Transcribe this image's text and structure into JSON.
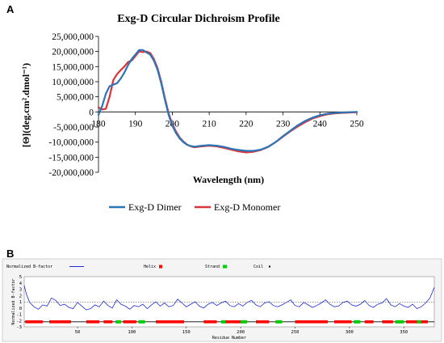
{
  "panels": {
    "a_letter": "A",
    "b_letter": "B"
  },
  "chart_data": [
    {
      "type": "line",
      "title": "Exg-D Circular Dichroism Profile",
      "xlabel": "Wavelength (nm)",
      "ylabel": "[Θ](deg.cm².dmol⁻¹)",
      "xlim": [
        180,
        250
      ],
      "ylim": [
        -20000000,
        25000000
      ],
      "x_ticks": [
        180,
        190,
        200,
        210,
        220,
        230,
        240,
        250
      ],
      "y_ticks": [
        25000000,
        20000000,
        15000000,
        10000000,
        5000000,
        0,
        -5000000,
        -10000000,
        -15000000,
        -20000000
      ],
      "x_tick_labels": [
        "180",
        "190",
        "200",
        "210",
        "220",
        "230",
        "240",
        "250"
      ],
      "y_tick_labels": [
        "25,000,000",
        "20,000,000",
        "15,000,000",
        "10,000,000",
        "5,000,000",
        "0",
        "-5,000,000",
        "-10,000,000",
        "-15,000,000",
        "-20,000,000"
      ],
      "grid": false,
      "legend_position": "bottom",
      "series": [
        {
          "name": "Exg-D Dimer",
          "color": "#2e75b6",
          "x": [
            180,
            181,
            182,
            183,
            184,
            185,
            186,
            187,
            188,
            189,
            190,
            191,
            192,
            193,
            194,
            195,
            196,
            197,
            198,
            199,
            200,
            201,
            202,
            203,
            204,
            205,
            206,
            208,
            210,
            212,
            214,
            216,
            218,
            220,
            222,
            224,
            226,
            228,
            230,
            232,
            234,
            236,
            238,
            240,
            242,
            244,
            246,
            248,
            250
          ],
          "y": [
            -1000000,
            2000000,
            6000000,
            8500000,
            9000000,
            9500000,
            11000000,
            13000000,
            15500000,
            17500000,
            19000000,
            20500000,
            20500000,
            19700000,
            19000000,
            17000000,
            14000000,
            9500000,
            4000000,
            -1000000,
            -4500000,
            -7000000,
            -8800000,
            -10000000,
            -10900000,
            -11300000,
            -11500000,
            -11200000,
            -11000000,
            -11200000,
            -11600000,
            -12200000,
            -12600000,
            -12900000,
            -12900000,
            -12500000,
            -11500000,
            -10000000,
            -8000000,
            -6200000,
            -4400000,
            -3000000,
            -1900000,
            -1100000,
            -600000,
            -300000,
            -200000,
            -100000,
            0
          ]
        },
        {
          "name": "Exg-D Monomer",
          "color": "#d9343a",
          "x": [
            180,
            181,
            182,
            183,
            184,
            185,
            186,
            187,
            188,
            189,
            190,
            191,
            192,
            193,
            194,
            195,
            196,
            197,
            198,
            199,
            200,
            201,
            202,
            203,
            204,
            205,
            206,
            208,
            210,
            212,
            214,
            216,
            218,
            220,
            222,
            224,
            226,
            228,
            230,
            232,
            234,
            236,
            238,
            240,
            242,
            244,
            246,
            248,
            250
          ],
          "y": [
            1500000,
            800000,
            1000000,
            5000000,
            10500000,
            12500000,
            13800000,
            15000000,
            16500000,
            17000000,
            18500000,
            20000000,
            19800000,
            20000000,
            19500000,
            17500000,
            14500000,
            10000000,
            4500000,
            -500000,
            -4000000,
            -6500000,
            -8500000,
            -9800000,
            -10800000,
            -11400000,
            -11700000,
            -11400000,
            -11200000,
            -11400000,
            -11900000,
            -12500000,
            -13100000,
            -13400000,
            -13200000,
            -12600000,
            -11600000,
            -10000000,
            -8200000,
            -6400000,
            -4800000,
            -3400000,
            -2200000,
            -1400000,
            -800000,
            -500000,
            -300000,
            -200000,
            -100000
          ]
        }
      ]
    },
    {
      "type": "line",
      "xlabel": "Residue Number",
      "ylabel": "Normalized B-factor",
      "xlim": [
        1,
        378
      ],
      "ylim": [
        -3,
        5
      ],
      "x_ticks": [
        50,
        100,
        150,
        200,
        250,
        300,
        350
      ],
      "x_tick_labels": [
        "50",
        "100",
        "150",
        "200",
        "250",
        "300",
        "350"
      ],
      "y_ticks": [
        5,
        4,
        3,
        2,
        1,
        0,
        -1,
        -2,
        -3
      ],
      "y_tick_labels": [
        "5",
        "4",
        "3",
        "2",
        "1",
        "0",
        "-1",
        "-2",
        "-3"
      ],
      "legend_position": "top",
      "legend": [
        "Normalized B-factor",
        "Helix",
        "Strand",
        "Coil"
      ],
      "mean_line": 0.9,
      "colors": {
        "bfactor": "#1f2bd6",
        "helix": "#ff0000",
        "strand": "#00cc00",
        "coil": "#000000",
        "mean": "#000000"
      },
      "series": [
        {
          "name": "Normalized B-factor",
          "x": [
            1,
            3,
            6,
            10,
            14,
            18,
            22,
            26,
            30,
            34,
            38,
            42,
            46,
            50,
            54,
            58,
            62,
            66,
            70,
            74,
            78,
            82,
            86,
            90,
            94,
            98,
            102,
            106,
            110,
            114,
            118,
            122,
            126,
            130,
            134,
            138,
            142,
            146,
            150,
            154,
            158,
            162,
            166,
            170,
            174,
            178,
            182,
            186,
            190,
            194,
            198,
            202,
            206,
            210,
            214,
            218,
            222,
            226,
            230,
            234,
            238,
            242,
            246,
            250,
            254,
            258,
            262,
            266,
            270,
            274,
            278,
            282,
            286,
            290,
            294,
            298,
            302,
            306,
            310,
            314,
            318,
            322,
            326,
            330,
            334,
            338,
            342,
            346,
            350,
            354,
            358,
            362,
            366,
            370,
            374,
            378
          ],
          "y": [
            3.6,
            2.2,
            0.9,
            0.2,
            -0.2,
            0.5,
            0.3,
            1.6,
            1.2,
            0.4,
            0.6,
            0.1,
            -0.1,
            0.9,
            0.3,
            -0.3,
            -0.1,
            0.5,
            0.2,
            1.1,
            0.4,
            0.0,
            1.3,
            0.6,
            0.3,
            -0.2,
            0.4,
            0.2,
            0.6,
            -0.1,
            0.5,
            1.0,
            0.3,
            0.8,
            0.2,
            0.4,
            1.4,
            0.8,
            0.2,
            0.6,
            1.0,
            0.3,
            0.0,
            0.6,
            0.9,
            0.4,
            0.8,
            1.1,
            0.4,
            0.2,
            0.7,
            0.3,
            0.9,
            1.2,
            0.5,
            0.2,
            0.8,
            1.0,
            0.4,
            0.2,
            0.5,
            0.9,
            1.3,
            0.4,
            0.2,
            0.9,
            0.5,
            0.1,
            0.4,
            0.8,
            1.3,
            0.6,
            0.2,
            0.3,
            0.9,
            1.1,
            0.5,
            0.3,
            0.6,
            1.2,
            0.4,
            0.1,
            0.6,
            0.8,
            1.5,
            0.5,
            0.2,
            0.7,
            0.3,
            0.1,
            0.6,
            -0.1,
            0.2,
            0.8,
            1.6,
            3.3
          ]
        }
      ],
      "helix_segments": [
        [
          2,
          18
        ],
        [
          24,
          44
        ],
        [
          58,
          70
        ],
        [
          74,
          82
        ],
        [
          92,
          104
        ],
        [
          122,
          148
        ],
        [
          166,
          178
        ],
        [
          184,
          200
        ],
        [
          214,
          226
        ],
        [
          250,
          280
        ],
        [
          286,
          302
        ],
        [
          314,
          322
        ],
        [
          330,
          340
        ],
        [
          352,
          372
        ]
      ],
      "strand_segments": [
        [
          85,
          90
        ],
        [
          106,
          112
        ],
        [
          182,
          186
        ],
        [
          200,
          206
        ],
        [
          232,
          238
        ],
        [
          304,
          310
        ],
        [
          342,
          350
        ],
        [
          362,
          366
        ]
      ]
    }
  ]
}
